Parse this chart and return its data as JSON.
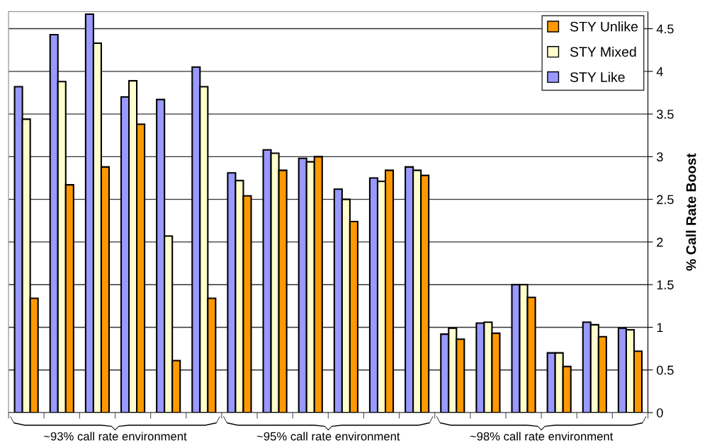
{
  "chart_data": {
    "type": "bar",
    "ylabel": "% Call Rate Boost",
    "categories": [
      null,
      null,
      null,
      null,
      null,
      null,
      null,
      null,
      null,
      null,
      null,
      null,
      null,
      null,
      null,
      null,
      null,
      null
    ],
    "series": [
      {
        "name": "STY Like",
        "color": "#9999ff",
        "values": [
          3.82,
          4.43,
          4.67,
          3.7,
          3.67,
          4.05,
          2.81,
          3.08,
          2.98,
          2.62,
          2.75,
          2.88,
          0.92,
          1.05,
          1.5,
          0.7,
          1.06,
          0.99
        ]
      },
      {
        "name": "STY Mixed",
        "color": "#ffffcc",
        "values": [
          3.44,
          3.88,
          4.33,
          3.89,
          2.07,
          3.82,
          2.72,
          3.04,
          2.94,
          2.5,
          2.71,
          2.84,
          0.99,
          1.06,
          1.5,
          0.7,
          1.03,
          0.97
        ]
      },
      {
        "name": "STY Unlike",
        "color": "#ff9900",
        "values": [
          1.34,
          2.67,
          2.88,
          3.38,
          0.61,
          1.34,
          2.54,
          2.84,
          3.0,
          2.24,
          2.84,
          2.78,
          0.86,
          0.93,
          1.35,
          0.54,
          0.89,
          0.72
        ]
      }
    ],
    "ylim": [
      0,
      4.7
    ],
    "yticks": [
      0,
      0.5,
      1,
      1.5,
      2,
      2.5,
      3,
      3.5,
      4,
      4.5
    ],
    "grid": "y",
    "legend": "top right",
    "annotations": [
      "~93% call rate environment",
      "~95% call rate environment",
      "~98% call rate environment"
    ]
  }
}
